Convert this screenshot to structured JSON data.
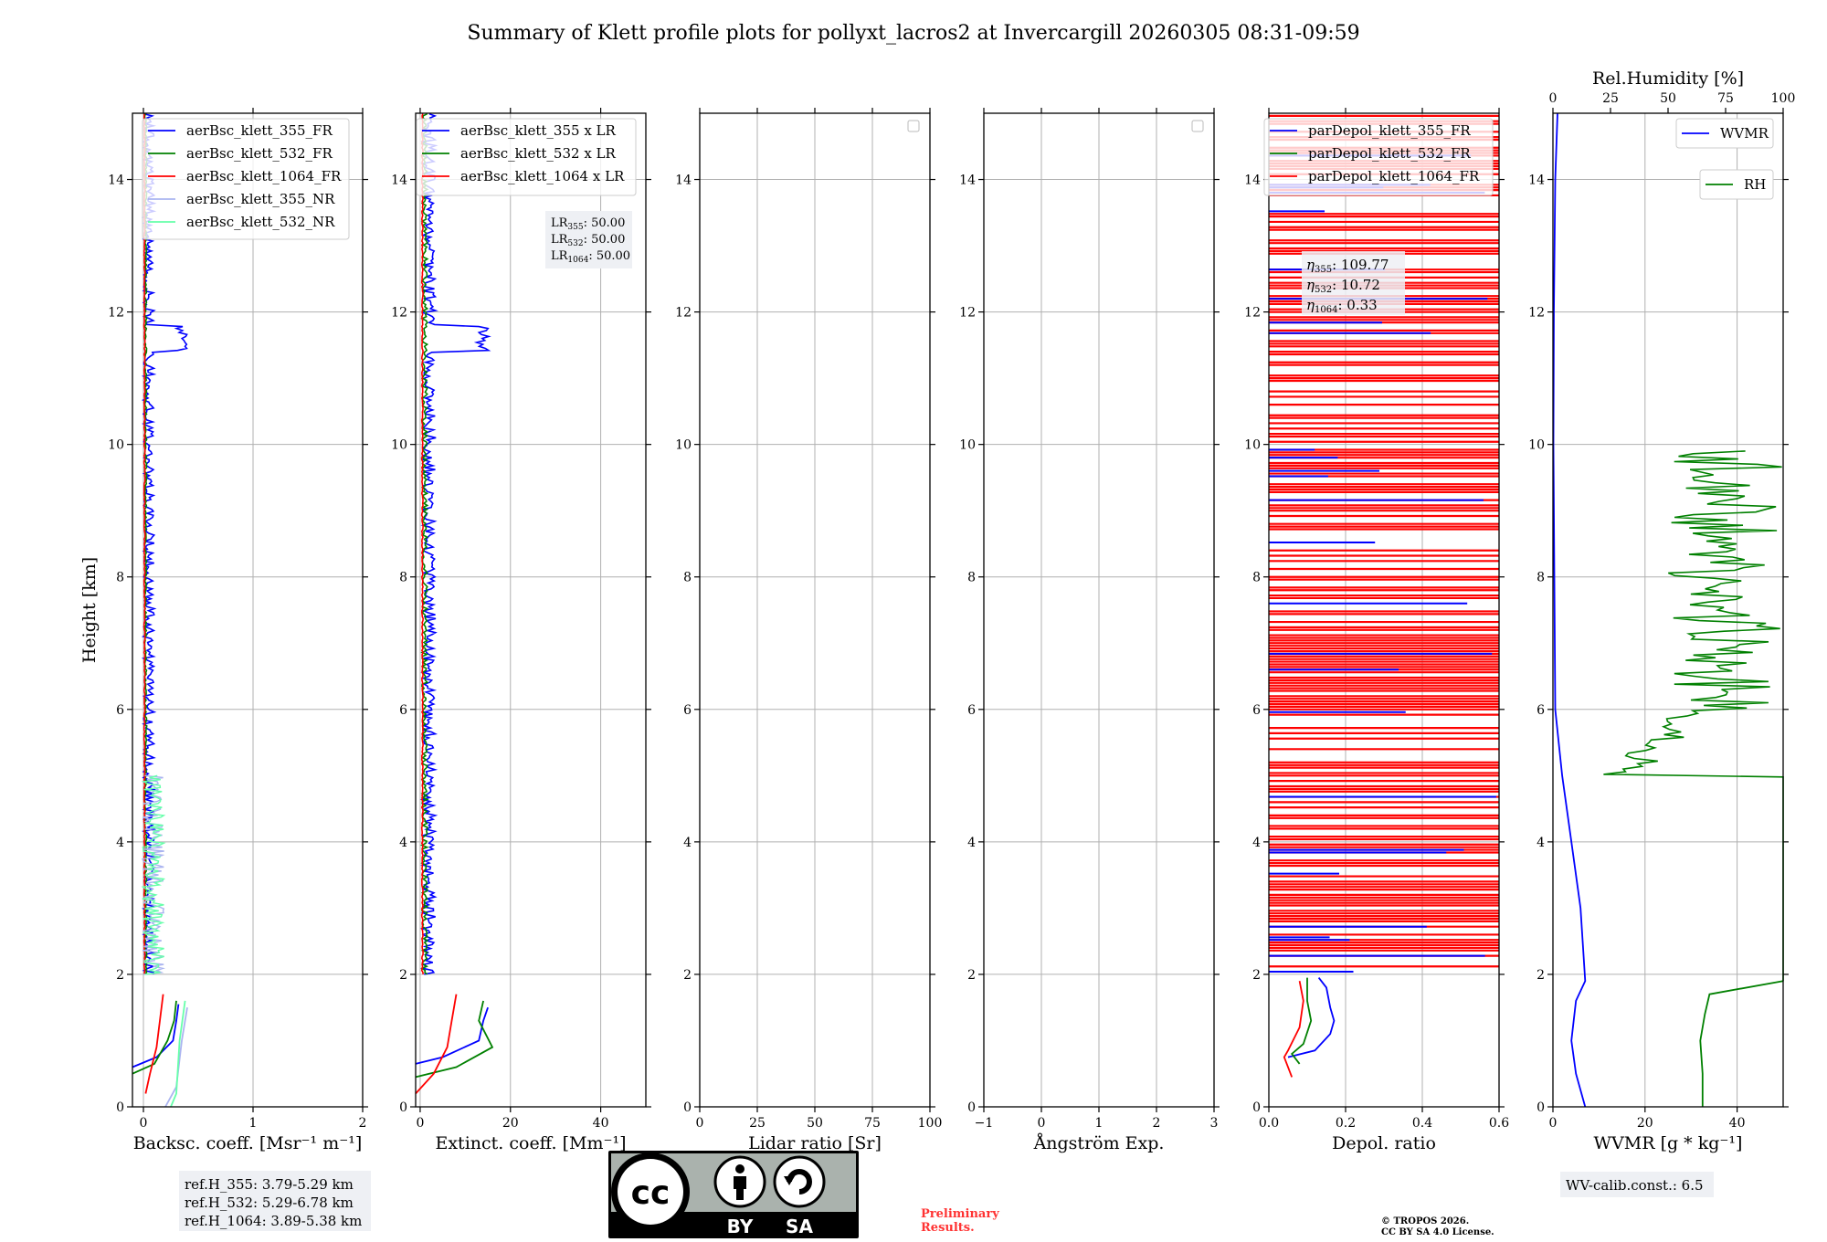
{
  "title": "Summary of Klett profile plots for pollyxt_lacros2 at Invercargill 20260305 08:31-09:59",
  "colors": {
    "c355": "#0000ff",
    "c532": "#008000",
    "c1064": "#ff0000",
    "c355nr": "#aab4f0",
    "c532nr": "#66ffaa",
    "grid": "#b0b0b0"
  },
  "chart_data": [
    {
      "type": "line",
      "id": "bsc",
      "xlabel": "Backsc. coeff. [Msr⁻¹ m⁻¹]",
      "ylabel": "Height [km]",
      "xlim": [
        -0.1,
        2
      ],
      "ylim": [
        0,
        15
      ],
      "xticks": [
        0,
        1,
        2
      ],
      "xtick_labels": [
        "0",
        "1",
        "2"
      ],
      "yticks": [
        0,
        2,
        4,
        6,
        8,
        10,
        12,
        14
      ],
      "ytick_labels": [
        "0",
        "2",
        "4",
        "6",
        "8",
        "10",
        "12",
        "14"
      ],
      "legend": [
        "aerBsc_klett_355_FR",
        "aerBsc_klett_532_FR",
        "aerBsc_klett_1064_FR",
        "aerBsc_klett_355_NR",
        "aerBsc_klett_532_NR"
      ],
      "series": [
        {
          "name": "aerBsc_klett_355_FR",
          "color": "#0000ff",
          "points": [
            [
              0.32,
              1.55
            ],
            [
              0.3,
              1.3
            ],
            [
              0.27,
              1.0
            ],
            [
              0.12,
              0.75
            ],
            [
              -0.1,
              0.6
            ]
          ]
        },
        {
          "name": "aerBsc_klett_532_FR",
          "color": "#008000",
          "points": [
            [
              0.3,
              1.6
            ],
            [
              0.28,
              1.3
            ],
            [
              0.22,
              1.0
            ],
            [
              0.1,
              0.65
            ],
            [
              -0.1,
              0.5
            ]
          ]
        },
        {
          "name": "aerBsc_klett_1064_FR",
          "color": "#ff0000",
          "points": [
            [
              0.18,
              1.7
            ],
            [
              0.15,
              1.3
            ],
            [
              0.12,
              0.9
            ],
            [
              0.06,
              0.5
            ],
            [
              0.02,
              0.2
            ]
          ]
        },
        {
          "name": "aerBsc_klett_355_NR",
          "color": "#aab4f0",
          "points": [
            [
              0.4,
              1.5
            ],
            [
              0.35,
              1.0
            ],
            [
              0.3,
              0.3
            ],
            [
              0.2,
              0.0
            ]
          ]
        },
        {
          "name": "aerBsc_klett_532_NR",
          "color": "#66ffaa",
          "points": [
            [
              0.38,
              1.6
            ],
            [
              0.33,
              1.0
            ],
            [
              0.3,
              0.2
            ],
            [
              0.25,
              0.0
            ]
          ]
        }
      ]
    },
    {
      "type": "line",
      "id": "ext",
      "xlabel": "Extinct. coeff. [Mm⁻¹]",
      "xlim": [
        -1,
        50
      ],
      "ylim": [
        0,
        15
      ],
      "xticks": [
        0,
        20,
        40
      ],
      "xtick_labels": [
        "0",
        "20",
        "40"
      ],
      "yticks": [
        0,
        2,
        4,
        6,
        8,
        10,
        12,
        14
      ],
      "ytick_labels": [
        "0",
        "2",
        "4",
        "6",
        "8",
        "10",
        "12",
        "14"
      ],
      "legend": [
        "aerBsc_klett_355 x LR",
        "aerBsc_klett_532 x LR",
        "aerBsc_klett_1064 x LR"
      ],
      "series": [
        {
          "name": "aerBsc_klett_355 x LR",
          "color": "#0000ff",
          "points": [
            [
              15,
              1.5
            ],
            [
              14,
              1.3
            ],
            [
              13,
              1.0
            ],
            [
              5,
              0.75
            ],
            [
              -1,
              0.65
            ]
          ]
        },
        {
          "name": "aerBsc_klett_532 x LR",
          "color": "#008000",
          "points": [
            [
              14,
              1.6
            ],
            [
              13,
              1.3
            ],
            [
              16,
              0.9
            ],
            [
              8,
              0.6
            ],
            [
              -1,
              0.45
            ]
          ]
        },
        {
          "name": "aerBsc_klett_1064 x LR",
          "color": "#ff0000",
          "points": [
            [
              8,
              1.7
            ],
            [
              7,
              1.3
            ],
            [
              6,
              0.9
            ],
            [
              3,
              0.5
            ],
            [
              -1,
              0.2
            ]
          ]
        }
      ]
    },
    {
      "type": "line",
      "id": "lr",
      "xlabel": "Lidar ratio [Sr]",
      "xlim": [
        0,
        100
      ],
      "ylim": [
        0,
        15
      ],
      "xticks": [
        0,
        25,
        50,
        75,
        100
      ],
      "xtick_labels": [
        "0",
        "25",
        "50",
        "75",
        "100"
      ],
      "yticks": [
        0,
        2,
        4,
        6,
        8,
        10,
        12,
        14
      ],
      "ytick_labels": [
        "0",
        "2",
        "4",
        "6",
        "8",
        "10",
        "12",
        "14"
      ],
      "series": []
    },
    {
      "type": "line",
      "id": "ae",
      "xlabel": "Ångström Exp.",
      "xlim": [
        -1,
        3
      ],
      "ylim": [
        0,
        15
      ],
      "xticks": [
        -1,
        0,
        1,
        2,
        3
      ],
      "xtick_labels": [
        "−1",
        "0",
        "1",
        "2",
        "3"
      ],
      "yticks": [
        0,
        2,
        4,
        6,
        8,
        10,
        12,
        14
      ],
      "ytick_labels": [
        "0",
        "2",
        "4",
        "6",
        "8",
        "10",
        "12",
        "14"
      ],
      "series": []
    },
    {
      "type": "line",
      "id": "dep",
      "xlabel": "Depol. ratio",
      "xlim": [
        0,
        0.6
      ],
      "ylim": [
        0,
        15
      ],
      "xticks": [
        0,
        0.2,
        0.4,
        0.6
      ],
      "xtick_labels": [
        "0.0",
        "0.2",
        "0.4",
        "0.6"
      ],
      "yticks": [
        0,
        2,
        4,
        6,
        8,
        10,
        12,
        14
      ],
      "ytick_labels": [
        "0",
        "2",
        "4",
        "6",
        "8",
        "10",
        "12",
        "14"
      ],
      "legend": [
        "parDepol_klett_355_FR",
        "parDepol_klett_532_FR",
        "parDepol_klett_1064_FR"
      ],
      "series": [
        {
          "name": "parDepol_klett_355_FR",
          "color": "#0000ff",
          "points": [
            [
              0.13,
              1.95
            ],
            [
              0.15,
              1.8
            ],
            [
              0.16,
              1.5
            ],
            [
              0.17,
              1.3
            ],
            [
              0.16,
              1.1
            ],
            [
              0.12,
              0.85
            ],
            [
              0.05,
              0.75
            ]
          ]
        },
        {
          "name": "parDepol_klett_532_FR",
          "color": "#008000",
          "points": [
            [
              0.1,
              1.95
            ],
            [
              0.1,
              1.6
            ],
            [
              0.11,
              1.3
            ],
            [
              0.09,
              0.95
            ],
            [
              0.06,
              0.8
            ],
            [
              0.08,
              0.65
            ]
          ]
        },
        {
          "name": "parDepol_klett_1064_FR",
          "color": "#ff0000",
          "points": [
            [
              0.08,
              1.9
            ],
            [
              0.09,
              1.6
            ],
            [
              0.08,
              1.2
            ],
            [
              0.05,
              0.85
            ],
            [
              0.04,
              0.75
            ],
            [
              0.06,
              0.45
            ]
          ]
        }
      ]
    },
    {
      "type": "line",
      "id": "wv",
      "xlabel": "WVMR [g * kg⁻¹]",
      "top_xlabel": "Rel.Humidity [%]",
      "xlim": [
        0,
        50
      ],
      "top_xlim": [
        0,
        100
      ],
      "ylim": [
        0,
        15
      ],
      "xticks": [
        0,
        20,
        40
      ],
      "xtick_labels": [
        "0",
        "20",
        "40"
      ],
      "top_xticks": [
        0,
        25,
        50,
        75,
        100
      ],
      "top_xtick_labels": [
        "0",
        "25",
        "50",
        "75",
        "100"
      ],
      "yticks": [
        0,
        2,
        4,
        6,
        8,
        10,
        12,
        14
      ],
      "ytick_labels": [
        "0",
        "2",
        "4",
        "6",
        "8",
        "10",
        "12",
        "14"
      ],
      "legend": [
        "WVMR",
        "RH"
      ],
      "series": [
        {
          "name": "WVMR",
          "color": "#0000ff",
          "points": [
            [
              7,
              0
            ],
            [
              5,
              0.5
            ],
            [
              4,
              1.0
            ],
            [
              5,
              1.6
            ],
            [
              7,
              1.9
            ],
            [
              6,
              3.0
            ],
            [
              4,
              4.0
            ],
            [
              2,
              5.0
            ],
            [
              0.5,
              6.0
            ],
            [
              0.3,
              8.0
            ],
            [
              0.1,
              10.0
            ],
            [
              0.2,
              12.0
            ],
            [
              0.5,
              14.0
            ],
            [
              1,
              15.0
            ]
          ]
        },
        {
          "name": "RH",
          "color": "#008000",
          "points": [
            [
              65,
              0
            ],
            [
              65,
              0.5
            ],
            [
              64,
              1.0
            ],
            [
              66,
              1.4
            ],
            [
              68,
              1.7
            ],
            [
              100,
              1.9
            ]
          ]
        }
      ]
    }
  ],
  "annotations": {
    "lr_box": {
      "l1": "LR",
      "s1": "355",
      "v1": ": 50.00",
      "l2": "LR",
      "s2": "532",
      "v2": ": 50.00",
      "l3": "LR",
      "s3": "1064",
      "v3": ": 50.00"
    },
    "eta_box": {
      "l1": "η",
      "s1": "355",
      "v1": ": 109.77",
      "l2": "η",
      "s2": "532",
      "v2": ": 10.72",
      "l3": "η",
      "s3": "1064",
      "v3": ": 0.33"
    },
    "ref_box": {
      "r1": "ref.H_355: 3.79-5.29 km",
      "r2": "ref.H_532: 5.29-6.78 km",
      "r3": "ref.H_1064: 3.89-5.38 km"
    },
    "wv_calib": "WV-calib.const.: 6.5",
    "preliminary": {
      "l1": "Preliminary",
      "l2": "Results."
    },
    "copyright": {
      "l1": "© TROPOS 2026.",
      "l2": "CC BY SA 4.0 License."
    },
    "cc_logo": {
      "cc": "cc",
      "by": "BY",
      "sa": "SA"
    }
  }
}
